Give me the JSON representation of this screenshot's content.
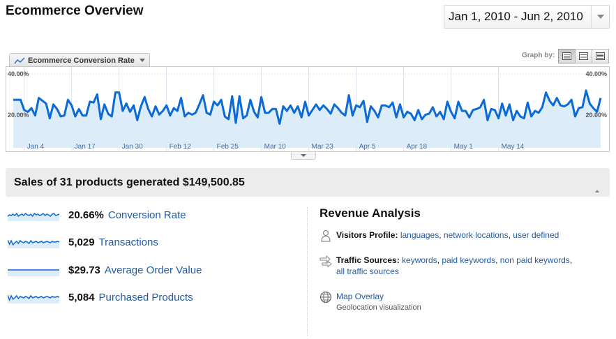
{
  "header": {
    "title": "Ecommerce Overview",
    "date_range": "Jan 1, 2010 - Jun 2, 2010"
  },
  "graph": {
    "metric_tab_label": "Ecommerce Conversion Rate",
    "graph_by_label": "Graph by:",
    "graph_by_options": [
      "day",
      "week",
      "month"
    ],
    "graph_by_selected": "day"
  },
  "chart_data": {
    "type": "line",
    "series": [
      {
        "name": "Ecommerce Conversion Rate",
        "values": [
          26,
          26,
          26,
          20.5,
          19.5,
          21.5,
          17.5,
          27,
          25.5,
          24,
          16,
          23.5,
          21,
          17,
          17.5,
          26,
          23,
          17,
          21,
          17.5,
          17.5,
          25,
          24.5,
          29,
          15.5,
          23.5,
          18.5,
          17,
          30,
          30,
          20,
          24,
          19.5,
          23,
          15,
          22.5,
          27.5,
          21,
          17,
          22.5,
          18,
          20,
          23,
          17.5,
          21.5,
          20,
          27,
          17,
          19,
          18,
          19,
          23.5,
          28.5,
          19,
          18,
          25,
          23,
          26,
          17,
          15.5,
          28,
          13.5,
          28,
          16,
          17.5,
          26,
          19.5,
          16.5,
          27.5,
          19,
          19,
          21,
          21,
          13,
          22.5,
          20,
          23,
          19,
          22.5,
          16.5,
          25,
          17.5,
          20.5,
          23.5,
          20.5,
          23,
          21,
          18.5,
          23.5,
          21.5,
          19,
          17.5,
          28.5,
          17.5,
          23,
          22,
          25.5,
          14,
          22.5,
          20,
          16.5,
          23,
          23,
          22,
          24.5,
          16.5,
          23.5,
          16.5,
          19.5,
          18.5,
          15,
          20.5,
          15.5,
          18,
          18.5,
          22,
          17,
          19.5,
          15.5,
          25,
          19.5,
          16,
          25,
          20,
          20,
          16.5,
          20.5,
          21,
          22,
          26,
          15,
          21,
          20.5,
          16,
          24,
          17.5,
          23.5,
          15,
          20,
          17,
          16,
          24.5,
          17,
          20,
          19,
          22,
          30,
          25.5,
          23,
          27,
          23,
          22.5,
          23.5,
          26,
          17,
          21.5,
          22,
          31,
          24,
          21.5,
          19.5,
          27
        ]
      }
    ],
    "x_tick_labels": [
      "Jan 4",
      "Jan 17",
      "Jan 30",
      "Feb 12",
      "Feb 25",
      "Mar 10",
      "Mar 23",
      "Apr 5",
      "Apr 18",
      "May 1",
      "May 14"
    ],
    "y_tick_labels": [
      "40.00%",
      "20.00%"
    ],
    "ylim": [
      0,
      40
    ],
    "grid": true,
    "colors": {
      "line": "#0b6ad6",
      "fill": "#dcecf9",
      "grid": "#d9e3ec"
    }
  },
  "summary": {
    "headline": "Sales of 31 products generated $149,500.85"
  },
  "metrics": [
    {
      "value": "20.66%",
      "label": "Conversion Rate",
      "spark": [
        5,
        7,
        6,
        8,
        6,
        9,
        5,
        7,
        8,
        6,
        9,
        7,
        6,
        8,
        5,
        9,
        7,
        8,
        6,
        7,
        9,
        6,
        8,
        7,
        5,
        8,
        9,
        6,
        7,
        8
      ]
    },
    {
      "value": "5,029",
      "label": "Transactions",
      "spark": [
        10,
        4,
        9,
        3,
        6,
        8,
        5,
        9,
        7,
        6,
        8,
        7,
        5,
        9,
        6,
        7,
        8,
        6,
        7,
        8,
        6,
        7,
        8,
        7,
        6,
        8,
        7,
        7,
        8,
        7
      ]
    },
    {
      "value": "$29.73",
      "label": "Average Order Value",
      "spark": [
        7,
        7,
        7,
        7,
        7,
        7,
        7,
        7,
        7,
        7,
        7,
        7,
        7,
        7,
        7,
        7,
        7,
        7,
        7,
        7,
        7,
        7,
        7,
        7,
        7,
        7,
        7,
        7,
        7,
        7
      ]
    },
    {
      "value": "5,084",
      "label": "Purchased Products",
      "spark": [
        10,
        3,
        9,
        4,
        6,
        9,
        5,
        8,
        7,
        6,
        8,
        7,
        5,
        9,
        6,
        7,
        8,
        6,
        7,
        8,
        6,
        7,
        8,
        7,
        6,
        8,
        7,
        7,
        8,
        7
      ]
    }
  ],
  "revenue": {
    "title": "Revenue Analysis",
    "visitors_profile": {
      "label": "Visitors Profile:",
      "links": [
        "languages",
        "network locations",
        "user defined"
      ]
    },
    "traffic_sources": {
      "label": "Traffic Sources:",
      "links": [
        "keywords",
        "paid keywords",
        "non paid keywords",
        "all traffic sources"
      ]
    },
    "map_overlay": {
      "label": "Map Overlay",
      "sub": "Geolocation visualization"
    }
  }
}
